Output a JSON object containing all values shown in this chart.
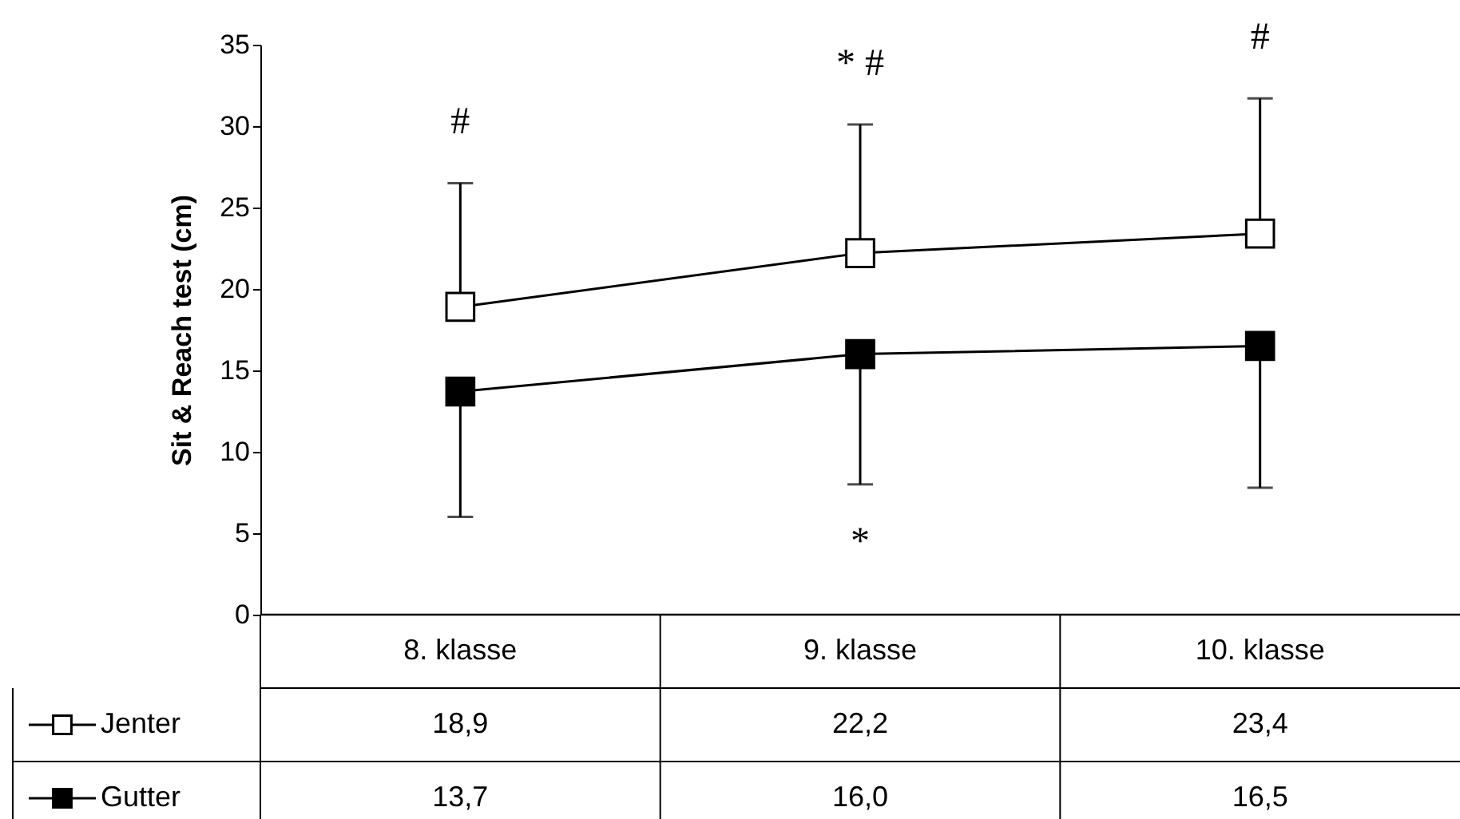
{
  "chart_data": {
    "type": "line",
    "ylabel": "Sit & Reach test (cm)",
    "categories": [
      "8. klasse",
      "9. klasse",
      "10. klasse"
    ],
    "ylim": [
      0,
      35
    ],
    "yticks": [
      0,
      5,
      10,
      15,
      20,
      25,
      30,
      35
    ],
    "marker": "square",
    "legend": "bottom left",
    "grid": false,
    "series": [
      {
        "name": "Jenter",
        "color": "#ffffff",
        "values": [
          18.9,
          22.2,
          23.4
        ],
        "errors": [
          [
            18.9,
            26.5
          ],
          [
            22.2,
            30.1
          ],
          [
            23.4,
            31.7
          ]
        ],
        "value_labels": [
          "18,9",
          "22,2",
          "23,4"
        ]
      },
      {
        "name": "Gutter",
        "color": "#000000",
        "values": [
          13.7,
          16.0,
          16.5
        ],
        "errors": [
          [
            6.0,
            13.7
          ],
          [
            8.0,
            16.0
          ],
          [
            7.8,
            16.5
          ]
        ],
        "value_labels": [
          "13,7",
          "16,0",
          "16,5"
        ]
      }
    ],
    "annotations": [
      {
        "text": "#",
        "x": "8. klasse",
        "y": 26.5
      },
      {
        "text": "* #",
        "x": "9. klasse",
        "y": 30.1
      },
      {
        "text": "#",
        "x": "10. klasse",
        "y": 31.7
      },
      {
        "text": "*",
        "x": "9. klasse",
        "y": 8.0
      }
    ]
  }
}
